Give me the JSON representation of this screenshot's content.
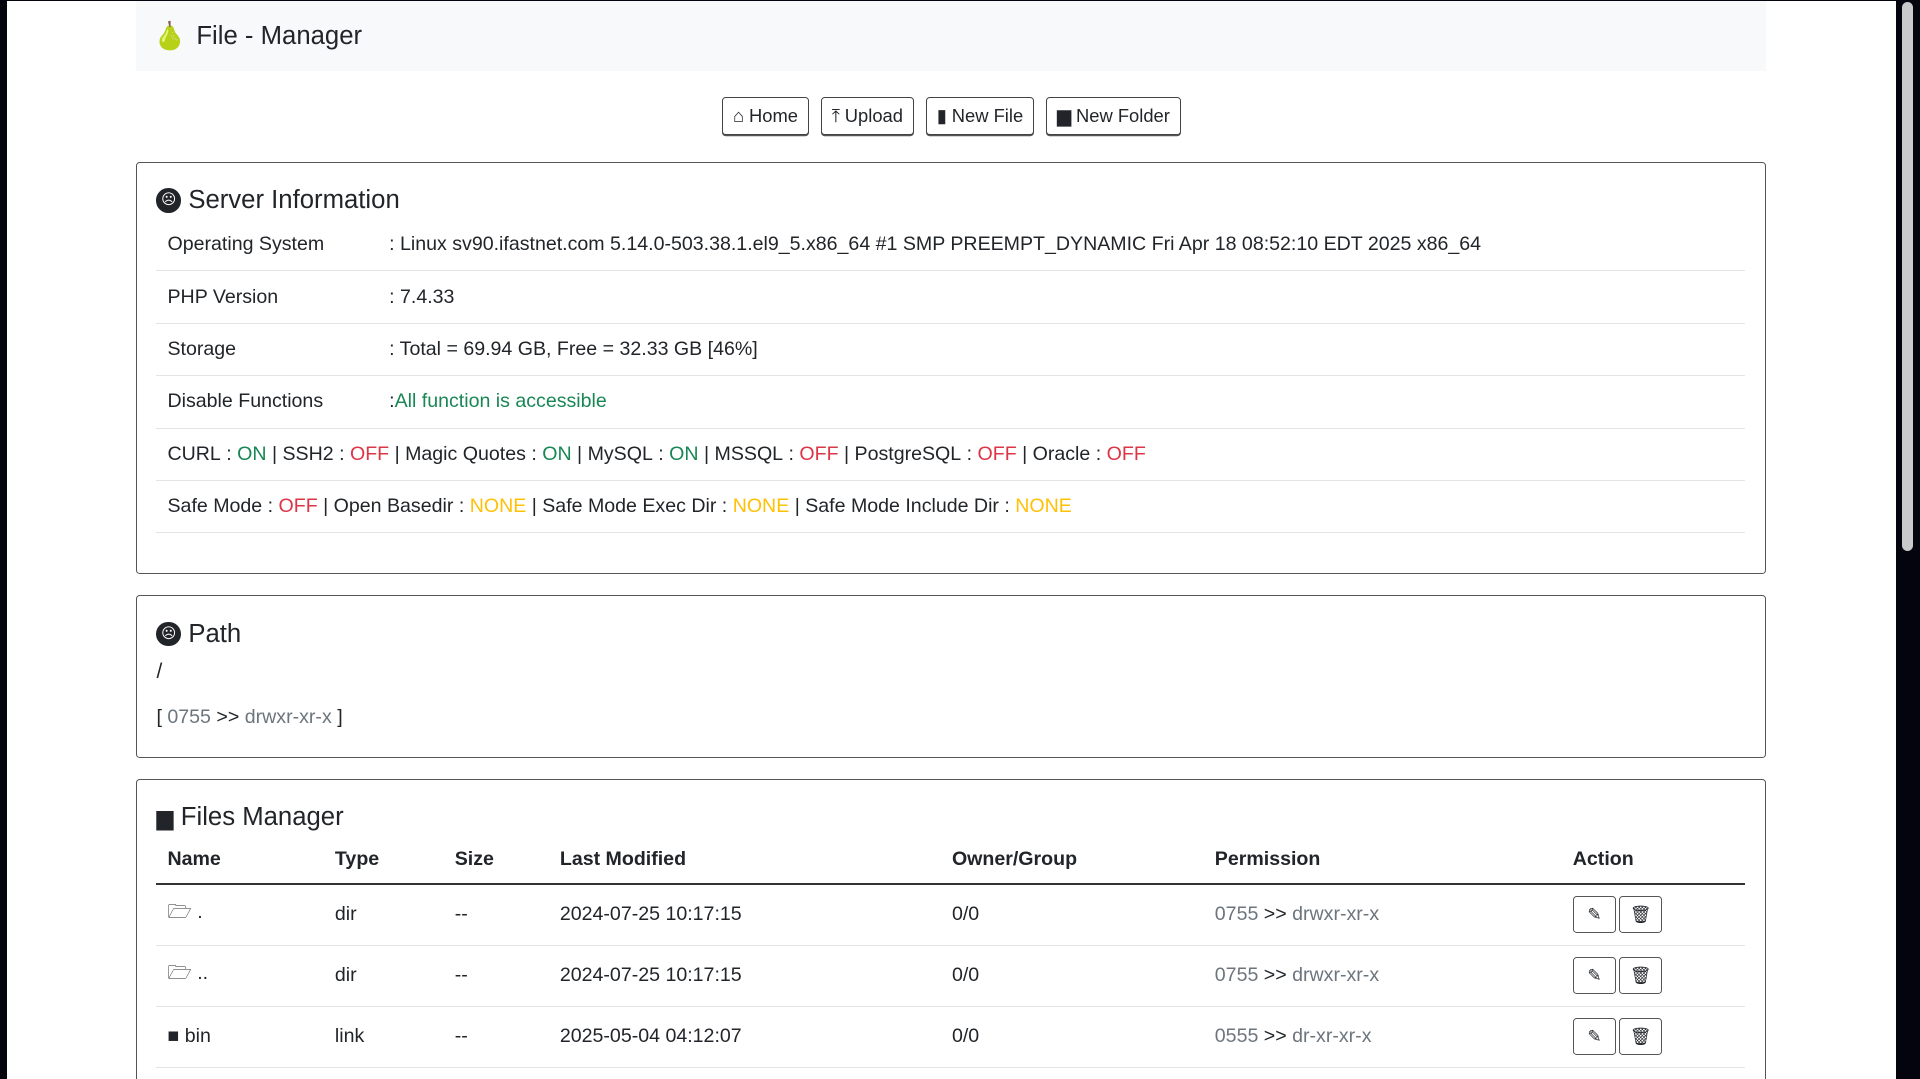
{
  "header": {
    "title": "File - Manager",
    "logo_icon": "pear-icon"
  },
  "toolbar": [
    {
      "label": "Home",
      "icon": "home-icon"
    },
    {
      "label": "Upload",
      "icon": "upload-icon"
    },
    {
      "label": "New File",
      "icon": "file-icon"
    },
    {
      "label": "New Folder",
      "icon": "folder-plus-icon"
    }
  ],
  "server": {
    "title": "Server Information",
    "rows": [
      {
        "k": "Operating System",
        "v": ": Linux sv90.ifastnet.com 5.14.0-503.38.1.el9_5.x86_64 #1 SMP PREEMPT_DYNAMIC Fri Apr 18 08:52:10 EDT 2025 x86_64"
      },
      {
        "k": "PHP Version",
        "v": ": 7.4.33"
      },
      {
        "k": "Storage",
        "v": ": Total = 69.94 GB, Free = 32.33 GB [46%]"
      },
      {
        "k": "Disable Functions",
        "v": ": ",
        "v2": "All function is accessible"
      }
    ],
    "features": [
      {
        "n": "CURL",
        "s": "ON"
      },
      {
        "n": "SSH2",
        "s": "OFF"
      },
      {
        "n": "Magic Quotes",
        "s": "ON"
      },
      {
        "n": "MySQL",
        "s": "ON"
      },
      {
        "n": "MSSQL",
        "s": "OFF"
      },
      {
        "n": "PostgreSQL",
        "s": "OFF"
      },
      {
        "n": "Oracle",
        "s": "OFF"
      }
    ],
    "safe": [
      {
        "n": "Safe Mode",
        "s": "OFF"
      },
      {
        "n": "Open Basedir",
        "s": "NONE"
      },
      {
        "n": "Safe Mode Exec Dir",
        "s": "NONE"
      },
      {
        "n": "Safe Mode Include Dir",
        "s": "NONE"
      }
    ]
  },
  "path": {
    "title": "Path",
    "current": "/",
    "octal": "0755",
    "arrow": ">>",
    "perm": "drwxr-xr-x",
    "open": "[",
    "close": "]"
  },
  "files": {
    "title": "Files Manager",
    "columns": [
      "Name",
      "Type",
      "Size",
      "Last Modified",
      "Owner/Group",
      "Permission",
      "Action"
    ],
    "rows": [
      {
        "name": ".",
        "icon": "folder-open-icon",
        "type": "dir",
        "size": "--",
        "mod": "2024-07-25 10:17:15",
        "owner": "0/0",
        "octal": "0755",
        "perm": "drwxr-xr-x"
      },
      {
        "name": "..",
        "icon": "folder-open-icon",
        "type": "dir",
        "size": "--",
        "mod": "2024-07-25 10:17:15",
        "owner": "0/0",
        "octal": "0755",
        "perm": "drwxr-xr-x"
      },
      {
        "name": "bin",
        "icon": "folder-icon",
        "type": "link",
        "size": "--",
        "mod": "2025-05-04 04:12:07",
        "owner": "0/0",
        "octal": "0555",
        "perm": "dr-xr-xr-x"
      }
    ]
  },
  "colors": {
    "on": "#198754",
    "off": "#dc3545",
    "none": "#ffc107"
  }
}
